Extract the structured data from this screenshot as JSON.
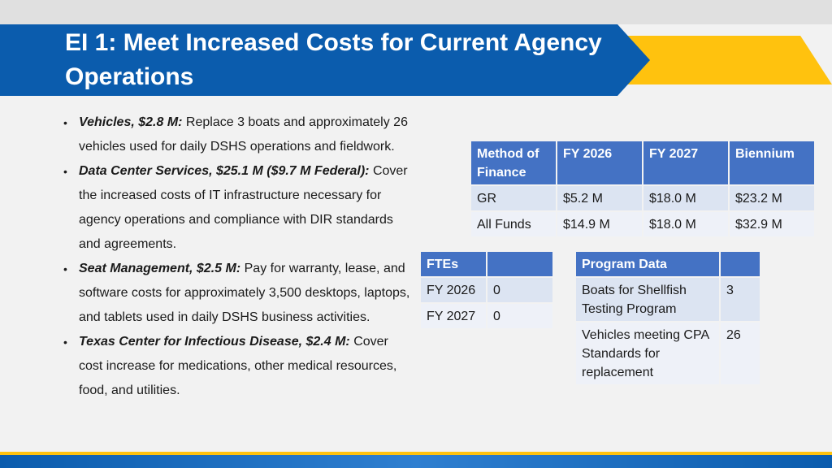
{
  "title": "EI 1: Meet Increased Costs for Current Agency Operations",
  "bullets": [
    {
      "bold": "Vehicles, $2.8 M:",
      "text": " Replace 3 boats and approximately 26 vehicles used for daily DSHS operations and fieldwork."
    },
    {
      "bold": "Data Center Services, $25.1 M ($9.7 M Federal):",
      "text": " Cover the increased costs of IT infrastructure necessary for agency operations and compliance with DIR standards and agreements."
    },
    {
      "bold": "Seat Management, $2.5 M:",
      "text": " Pay for warranty, lease, and software costs for approximately 3,500 desktops, laptops, and tablets used in daily DSHS business activities."
    },
    {
      "bold": "Texas Center for Infectious Disease, $2.4 M:",
      "text": " Cover cost increase for medications, other medical resources, food, and utilities."
    }
  ],
  "finance_table": {
    "headers": [
      "Method of Finance",
      "FY 2026",
      "FY 2027",
      "Biennium"
    ],
    "rows": [
      [
        "GR",
        "$5.2 M",
        "$18.0 M",
        "$23.2 M"
      ],
      [
        "All Funds",
        "$14.9 M",
        "$18.0 M",
        "$32.9 M"
      ]
    ]
  },
  "ftes_table": {
    "headers": [
      "FTEs",
      ""
    ],
    "rows": [
      [
        "FY 2026",
        "0"
      ],
      [
        "FY 2027",
        "0"
      ]
    ]
  },
  "program_table": {
    "headers": [
      "Program Data",
      ""
    ],
    "rows": [
      [
        "Boats for Shellfish Testing Program",
        "3"
      ],
      [
        "Vehicles meeting CPA Standards for replacement",
        "26"
      ]
    ]
  },
  "colors": {
    "banner_blue": "#0b5cad",
    "banner_yellow": "#ffc20e",
    "table_header": "#4472c4",
    "table_row": "#dce4f2",
    "table_row_alt": "#eef1f8"
  }
}
